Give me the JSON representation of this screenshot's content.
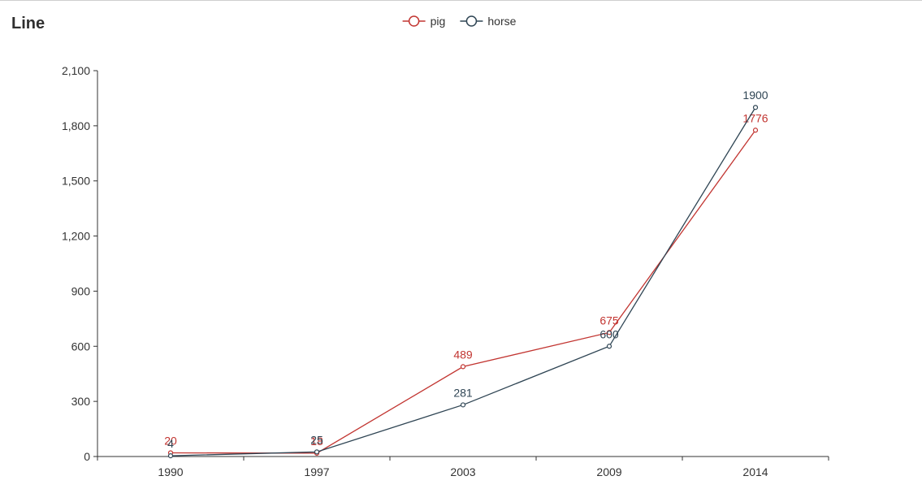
{
  "chart_data": {
    "type": "line",
    "title": "Line",
    "categories": [
      "1990",
      "1997",
      "2003",
      "2009",
      "2014"
    ],
    "ylim": [
      0,
      2100
    ],
    "yticks": [
      "0",
      "300",
      "600",
      "900",
      "1,200",
      "1,500",
      "1,800",
      "2,100"
    ],
    "ytick_values": [
      0,
      300,
      600,
      900,
      1200,
      1500,
      1800,
      2100
    ],
    "grid": false,
    "legend_position": "top-center",
    "series": [
      {
        "name": "pig",
        "color": "#c23531",
        "values": [
          20,
          18,
          489,
          675,
          1776
        ]
      },
      {
        "name": "horse",
        "color": "#2f4554",
        "values": [
          4,
          25,
          281,
          600,
          1900
        ]
      }
    ]
  }
}
